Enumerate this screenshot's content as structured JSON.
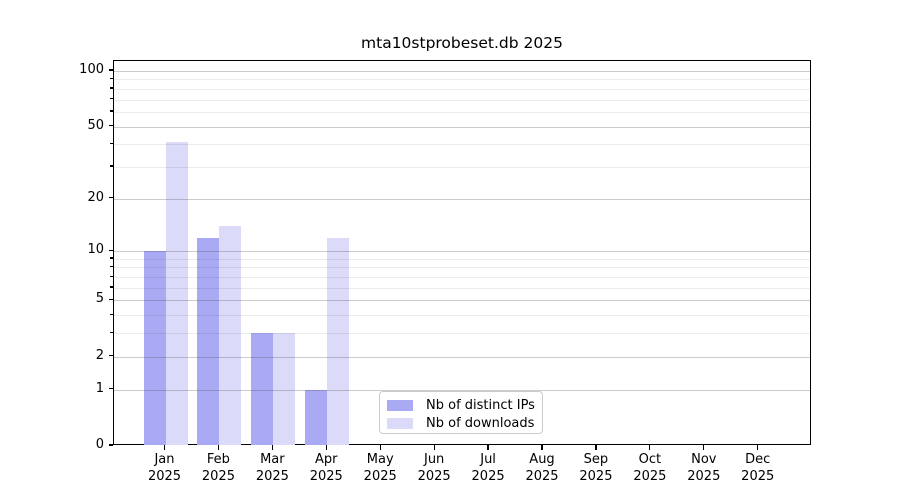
{
  "title": "mta10stprobeset.db 2025",
  "chart_data": {
    "type": "bar",
    "title": "mta10stprobeset.db 2025",
    "categories": [
      "Jan 2025",
      "Feb 2025",
      "Mar 2025",
      "Apr 2025",
      "May 2025",
      "Jun 2025",
      "Jul 2025",
      "Aug 2025",
      "Sep 2025",
      "Oct 2025",
      "Nov 2025",
      "Dec 2025"
    ],
    "x_tick_labels": [
      {
        "month": "Jan",
        "year": "2025"
      },
      {
        "month": "Feb",
        "year": "2025"
      },
      {
        "month": "Mar",
        "year": "2025"
      },
      {
        "month": "Apr",
        "year": "2025"
      },
      {
        "month": "May",
        "year": "2025"
      },
      {
        "month": "Jun",
        "year": "2025"
      },
      {
        "month": "Jul",
        "year": "2025"
      },
      {
        "month": "Aug",
        "year": "2025"
      },
      {
        "month": "Sep",
        "year": "2025"
      },
      {
        "month": "Oct",
        "year": "2025"
      },
      {
        "month": "Nov",
        "year": "2025"
      },
      {
        "month": "Dec",
        "year": "2025"
      }
    ],
    "series": [
      {
        "name": "Nb of distinct IPs",
        "color": "#a9a9f4",
        "values": [
          10,
          12,
          3,
          1,
          0,
          0,
          0,
          0,
          0,
          0,
          0,
          0
        ]
      },
      {
        "name": "Nb of downloads",
        "color": "#dbdbf9",
        "values": [
          41,
          14,
          3,
          12,
          0,
          0,
          0,
          0,
          0,
          0,
          0,
          0
        ]
      }
    ],
    "yscale": "log1p",
    "ylim": [
      0,
      100
    ],
    "y_ticks_major": [
      0,
      1,
      2,
      5,
      10,
      20,
      50,
      100
    ],
    "y_ticks_minor": [
      3,
      4,
      6,
      7,
      8,
      9,
      30,
      40,
      60,
      70,
      80,
      90
    ],
    "grid": "horizontal",
    "legend_position": "lower center"
  },
  "legend": {
    "items": [
      {
        "label": "Nb of distinct IPs"
      },
      {
        "label": "Nb of downloads"
      }
    ]
  }
}
